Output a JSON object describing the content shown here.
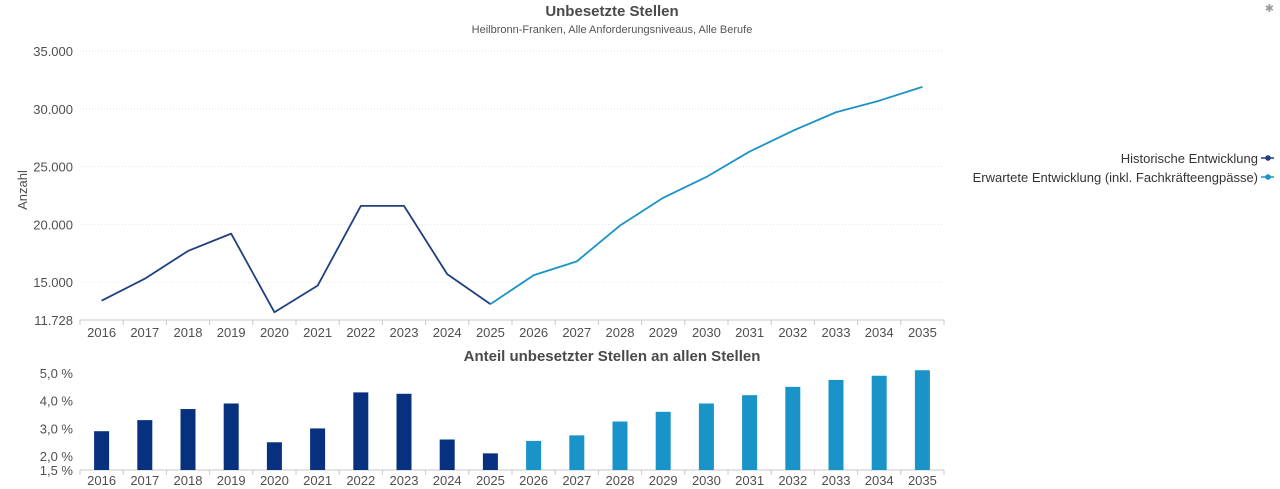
{
  "corner_icon": "asterisk-icon",
  "colors": {
    "historic": "#1f3f7f",
    "historic_bar": "#07307f",
    "forecast": "#1a93c8"
  },
  "chart_data": [
    {
      "type": "line",
      "title": "Unbesetzte Stellen",
      "subtitle": "Heilbronn-Franken, Alle Anforderungsniveaus, Alle Berufe",
      "ylabel": "Anzahl",
      "x": [
        "2016",
        "2017",
        "2018",
        "2019",
        "2020",
        "2021",
        "2022",
        "2023",
        "2024",
        "2025",
        "2026",
        "2027",
        "2028",
        "2029",
        "2030",
        "2031",
        "2032",
        "2033",
        "2034",
        "2035"
      ],
      "y_ticks": [
        "11.728",
        "15.000",
        "20.000",
        "25.000",
        "30.000",
        "35.000"
      ],
      "ylim": [
        11728,
        35000
      ],
      "grid": true,
      "legend_position": "right",
      "series": [
        {
          "name": "Historische Entwicklung",
          "color": "#1f3f7f",
          "x": [
            "2016",
            "2017",
            "2018",
            "2019",
            "2020",
            "2021",
            "2022",
            "2023",
            "2024",
            "2025"
          ],
          "values": [
            13400,
            15300,
            17700,
            19200,
            12400,
            14700,
            21600,
            21600,
            15700,
            13100
          ]
        },
        {
          "name": "Erwartete Entwicklung (inkl. Fachkräfteengpässe)",
          "color": "#1a93c8",
          "x": [
            "2025",
            "2026",
            "2027",
            "2028",
            "2029",
            "2030",
            "2031",
            "2032",
            "2033",
            "2034",
            "2035"
          ],
          "values": [
            13100,
            15600,
            16800,
            19900,
            22300,
            24100,
            26300,
            28100,
            29700,
            30700,
            31900
          ]
        }
      ]
    },
    {
      "type": "bar",
      "title": "Anteil unbesetzter Stellen an allen Stellen",
      "x": [
        "2016",
        "2017",
        "2018",
        "2019",
        "2020",
        "2021",
        "2022",
        "2023",
        "2024",
        "2025",
        "2026",
        "2027",
        "2028",
        "2029",
        "2030",
        "2031",
        "2032",
        "2033",
        "2034",
        "2035"
      ],
      "y_ticks": [
        "1,5 %",
        "2,0 %",
        "3,0 %",
        "4,0 %",
        "5,0 %"
      ],
      "ylim": [
        1.5,
        5.0
      ],
      "grid": false,
      "series": [
        {
          "name": "Historische Entwicklung",
          "color": "#07307f",
          "x": [
            "2016",
            "2017",
            "2018",
            "2019",
            "2020",
            "2021",
            "2022",
            "2023",
            "2024",
            "2025"
          ],
          "values": [
            2.9,
            3.3,
            3.7,
            3.9,
            2.5,
            3.0,
            4.3,
            4.25,
            2.6,
            2.1
          ]
        },
        {
          "name": "Erwartete Entwicklung (inkl. Fachkräfteengpässe)",
          "color": "#1a93c8",
          "x": [
            "2026",
            "2027",
            "2028",
            "2029",
            "2030",
            "2031",
            "2032",
            "2033",
            "2034",
            "2035"
          ],
          "values": [
            2.55,
            2.75,
            3.25,
            3.6,
            3.9,
            4.2,
            4.5,
            4.75,
            4.9,
            5.1
          ]
        }
      ]
    }
  ]
}
